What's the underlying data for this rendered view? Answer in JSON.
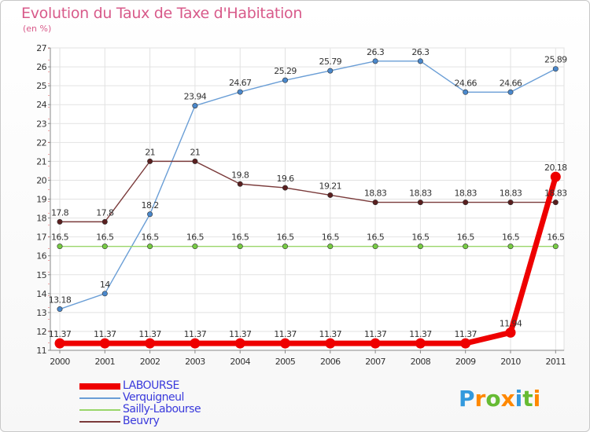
{
  "title": "Evolution du Taux de Taxe d'Habitation",
  "subtitle": "(en %)",
  "logo": {
    "text": "Proxiti",
    "letter_colors": [
      "#3399dd",
      "#ff8800",
      "#66bb33",
      "#ff8800",
      "#3399dd",
      "#66bb33",
      "#ff8800"
    ]
  },
  "chart_data": {
    "type": "line",
    "x": [
      2000,
      2001,
      2002,
      2003,
      2004,
      2005,
      2006,
      2007,
      2008,
      2009,
      2010,
      2011
    ],
    "x_labels": [
      "2000",
      "2001",
      "2002",
      "2003",
      "2004",
      "2005",
      "2006",
      "2007",
      "2008",
      "2009",
      "2010",
      "2011"
    ],
    "ylim": [
      11,
      27
    ],
    "y_ticks": [
      "11",
      "12",
      "13",
      "14",
      "15",
      "16",
      "17",
      "18",
      "19",
      "20",
      "21",
      "22",
      "23",
      "24",
      "25",
      "26",
      "27"
    ],
    "grid": true,
    "legend_position": "bottom-left",
    "series": [
      {
        "name": "Verquigneul",
        "color": "#6a9ed6",
        "marker_color": "#4a88cc",
        "values": [
          13.18,
          14,
          18.2,
          23.94,
          24.67,
          25.29,
          25.79,
          26.3,
          26.3,
          24.66,
          24.66,
          25.89
        ],
        "labels": [
          "13.18",
          "14",
          "18.2",
          "23.94",
          "24.67",
          "25.29",
          "25.79",
          "26.3",
          "26.3",
          "24.66",
          "24.66",
          "25.89"
        ]
      },
      {
        "name": "Sailly-Labourse",
        "color": "#99d66a",
        "marker_color": "#77cc44",
        "values": [
          16.5,
          16.5,
          16.5,
          16.5,
          16.5,
          16.5,
          16.5,
          16.5,
          16.5,
          16.5,
          16.5,
          16.5
        ],
        "labels": [
          "16.5",
          "16.5",
          "16.5",
          "16.5",
          "16.5",
          "16.5",
          "16.5",
          "16.5",
          "16.5",
          "16.5",
          "16.5",
          "16.5"
        ]
      },
      {
        "name": "Beuvry",
        "color": "#7a3a3a",
        "marker_color": "#5a1f1f",
        "values": [
          17.8,
          17.8,
          21,
          21,
          19.8,
          19.6,
          19.21,
          18.83,
          18.83,
          18.83,
          18.83,
          18.83
        ],
        "labels": [
          "17.8",
          "17.8",
          "21",
          "21",
          "19.8",
          "19.6",
          "19.21",
          "18.83",
          "18.83",
          "18.83",
          "18.83",
          "18.83"
        ]
      },
      {
        "name": "LABOURSE",
        "color": "#ee0000",
        "marker_color": "#ee0000",
        "values": [
          11.37,
          11.37,
          11.37,
          11.37,
          11.37,
          11.37,
          11.37,
          11.37,
          11.37,
          11.37,
          11.94,
          20.18
        ],
        "labels": [
          "11.37",
          "11.37",
          "11.37",
          "11.37",
          "11.37",
          "11.37",
          "11.37",
          "11.37",
          "11.37",
          "11.37",
          "11.94",
          "20.18"
        ]
      }
    ],
    "legend": [
      {
        "name": "LABOURSE",
        "color": "#ee0000",
        "thickness": 8
      },
      {
        "name": "Verquigneul",
        "color": "#6a9ed6",
        "thickness": 2
      },
      {
        "name": "Sailly-Labourse",
        "color": "#99d66a",
        "thickness": 2
      },
      {
        "name": "Beuvry",
        "color": "#7a3a3a",
        "thickness": 2
      }
    ]
  }
}
